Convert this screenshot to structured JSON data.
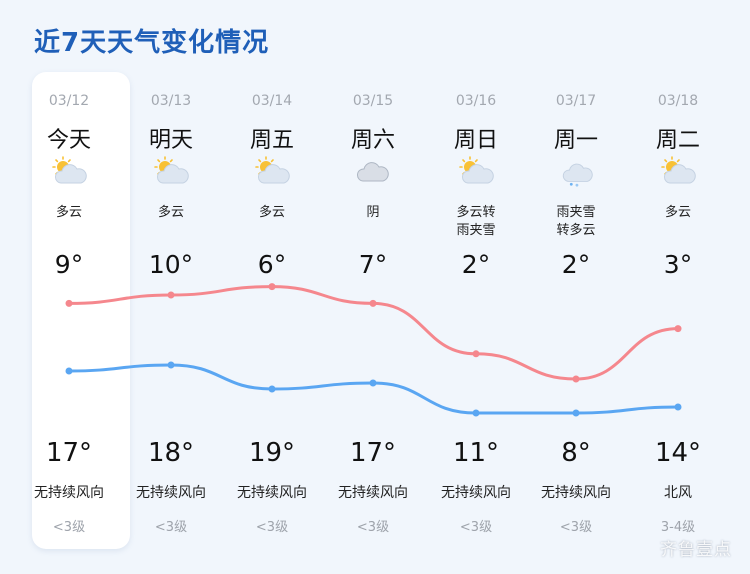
{
  "title": "近7天天气变化情况",
  "colors": {
    "high_line": "#f5878d",
    "low_line": "#5aa6f2",
    "title": "#1f5fb8"
  },
  "days": [
    {
      "date": "03/12",
      "name": "今天",
      "icon": "partly-cloudy-icon",
      "cond": "多云",
      "high": "9°",
      "low": "17°",
      "high_value": 9,
      "low_value": 17,
      "wind": "无持续风向",
      "level": "<3级"
    },
    {
      "date": "03/13",
      "name": "明天",
      "icon": "partly-cloudy-icon",
      "cond": "多云",
      "high": "10°",
      "low": "18°",
      "high_value": 10,
      "low_value": 18,
      "wind": "无持续风向",
      "level": "<3级"
    },
    {
      "date": "03/14",
      "name": "周五",
      "icon": "partly-cloudy-icon",
      "cond": "多云",
      "high": "6°",
      "low": "19°",
      "high_value": 6,
      "low_value": 19,
      "wind": "无持续风向",
      "level": "<3级"
    },
    {
      "date": "03/15",
      "name": "周六",
      "icon": "overcast-icon",
      "cond": "阴",
      "high": "7°",
      "low": "17°",
      "high_value": 7,
      "low_value": 17,
      "wind": "无持续风向",
      "level": "<3级"
    },
    {
      "date": "03/16",
      "name": "周日",
      "icon": "partly-cloudy-icon",
      "cond": "多云转\n雨夹雪",
      "high": "2°",
      "low": "11°",
      "high_value": 2,
      "low_value": 11,
      "wind": "无持续风向",
      "level": "<3级"
    },
    {
      "date": "03/17",
      "name": "周一",
      "icon": "sleet-icon",
      "cond": "雨夹雪\n转多云",
      "high": "2°",
      "low": "8°",
      "high_value": 2,
      "low_value": 8,
      "wind": "无持续风向",
      "level": "<3级"
    },
    {
      "date": "03/18",
      "name": "周二",
      "icon": "partly-cloudy-icon",
      "cond": "多云",
      "high": "3°",
      "low": "14°",
      "high_value": 3,
      "low_value": 14,
      "wind": "北风",
      "level": "3-4级"
    }
  ],
  "watermark": "齐鲁壹点"
}
